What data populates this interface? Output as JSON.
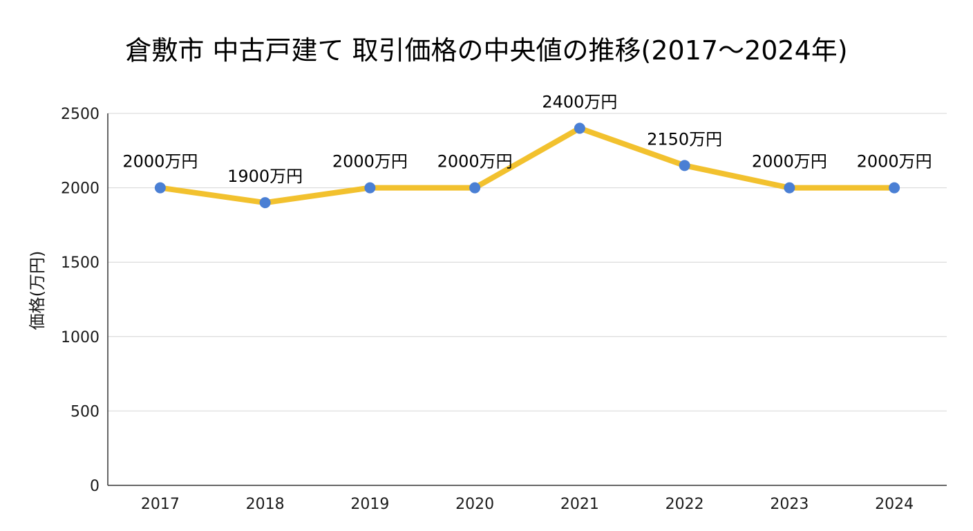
{
  "chart_data": {
    "type": "line",
    "title": "倉敷市 中古戸建て 取引価格の中央値の推移(2017〜2024年)",
    "xlabel": "",
    "ylabel": "価格(万円)",
    "categories": [
      "2017",
      "2018",
      "2019",
      "2020",
      "2021",
      "2022",
      "2023",
      "2024"
    ],
    "series": [
      {
        "values": [
          2000,
          1900,
          2000,
          2000,
          2400,
          2150,
          2000,
          2000
        ],
        "labels": [
          "2000万円",
          "1900万円",
          "2000万円",
          "2000万円",
          "2400万円",
          "2150万円",
          "2000万円",
          "2000万円"
        ]
      }
    ],
    "ylim": [
      0,
      2500
    ],
    "yticks": [
      "0",
      "500",
      "1000",
      "1500",
      "2000",
      "2500"
    ],
    "grid": true,
    "legend": "none",
    "colors": {
      "line": "#F2C12E",
      "marker": "#4A7FD4",
      "grid": "#d4d4d4",
      "axis": "#333333"
    }
  }
}
